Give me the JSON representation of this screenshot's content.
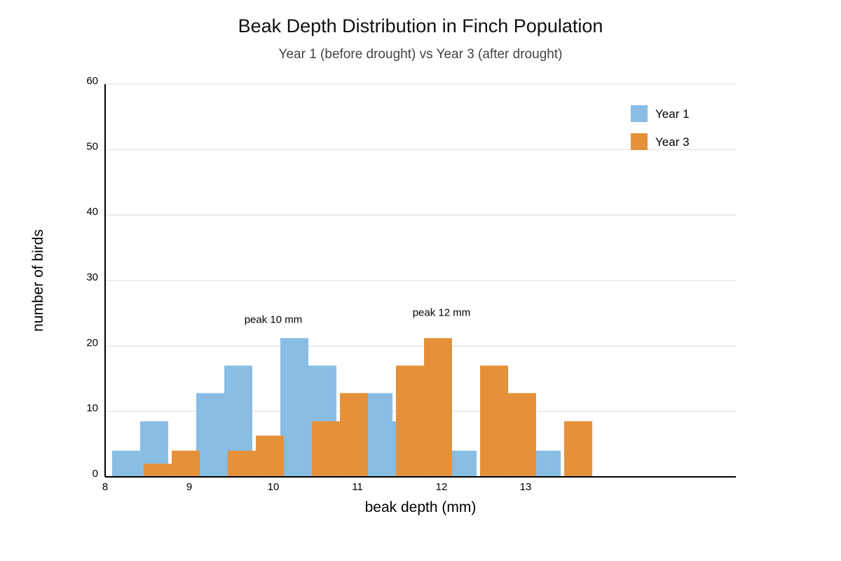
{
  "chart_data": {
    "type": "bar",
    "title": "Beak Depth Distribution in Finch Population",
    "subtitle": "Year 1 (before drought) vs Year 3 (after drought)",
    "xlabel": "beak depth (mm)",
    "ylabel": "number of birds",
    "xlim": [
      8,
      15.5
    ],
    "ylim": [
      0,
      60
    ],
    "x_ticks": [
      8,
      9,
      10,
      11,
      12,
      13
    ],
    "y_ticks": [
      0,
      10,
      20,
      30,
      40,
      50,
      60
    ],
    "grid": true,
    "legend_position": "top-right",
    "series": [
      {
        "name": "Year 1",
        "color": "#89bde3",
        "bins": [
          {
            "x0": 8.083,
            "x1": 8.417,
            "value": 4
          },
          {
            "x0": 8.417,
            "x1": 8.75,
            "value": 8.5
          },
          {
            "x0": 9.083,
            "x1": 9.417,
            "value": 12.8
          },
          {
            "x0": 9.417,
            "x1": 9.75,
            "value": 17
          },
          {
            "x0": 10.083,
            "x1": 10.417,
            "value": 21.2
          },
          {
            "x0": 10.417,
            "x1": 10.75,
            "value": 17
          },
          {
            "x0": 11.083,
            "x1": 11.417,
            "value": 12.8
          },
          {
            "x0": 11.417,
            "x1": 11.75,
            "value": 8.5
          },
          {
            "x0": 12.083,
            "x1": 12.417,
            "value": 4
          },
          {
            "x0": 13.083,
            "x1": 13.417,
            "value": 4
          }
        ]
      },
      {
        "name": "Year 3",
        "color": "#e5913a",
        "bins": [
          {
            "x0": 8.458,
            "x1": 8.792,
            "value": 2
          },
          {
            "x0": 8.792,
            "x1": 9.125,
            "value": 4
          },
          {
            "x0": 9.458,
            "x1": 9.792,
            "value": 4
          },
          {
            "x0": 9.792,
            "x1": 10.125,
            "value": 6.3
          },
          {
            "x0": 10.458,
            "x1": 10.792,
            "value": 8.5
          },
          {
            "x0": 10.792,
            "x1": 11.125,
            "value": 12.8
          },
          {
            "x0": 11.458,
            "x1": 11.792,
            "value": 17
          },
          {
            "x0": 11.792,
            "x1": 12.125,
            "value": 21.2
          },
          {
            "x0": 12.458,
            "x1": 12.792,
            "value": 17
          },
          {
            "x0": 12.792,
            "x1": 13.125,
            "value": 12.8
          },
          {
            "x0": 13.458,
            "x1": 13.792,
            "value": 8.5
          }
        ]
      }
    ],
    "annotations": [
      {
        "text": "peak 10 mm",
        "x": 10,
        "y": 23.5
      },
      {
        "text": "peak 12 mm",
        "x": 12,
        "y": 24.6
      }
    ]
  }
}
